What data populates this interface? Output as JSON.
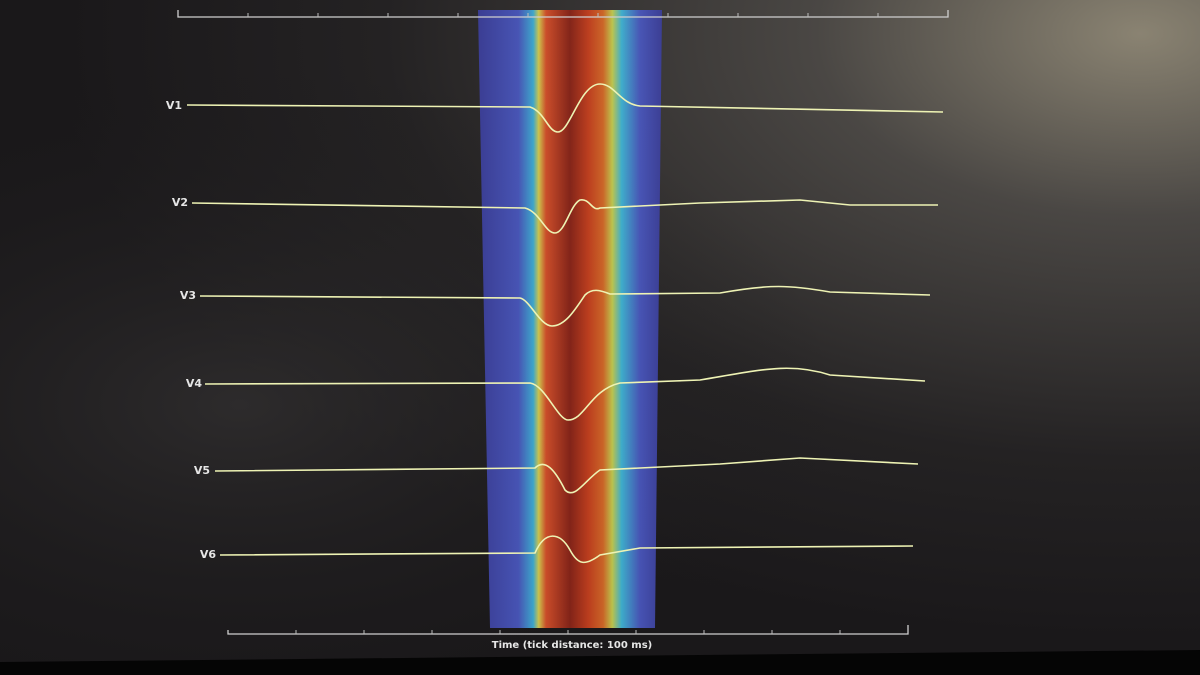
{
  "leads": [
    "V1",
    "V2",
    "V3",
    "V4",
    "V5",
    "V6"
  ],
  "x_axis": {
    "label": "Time (tick distance: 100 ms)"
  }
}
